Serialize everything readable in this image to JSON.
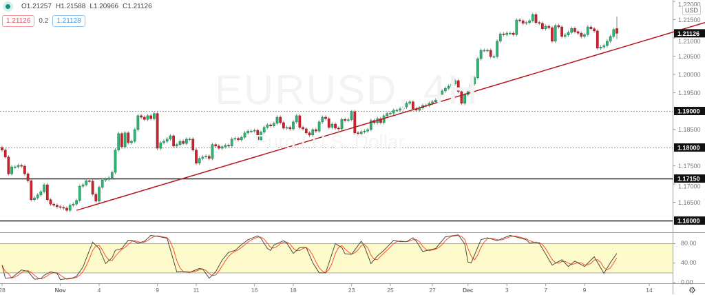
{
  "header": {
    "ohlc": {
      "open": "O1.21257",
      "high": "H1.21588",
      "low": "L1.20966",
      "close": "C1.21126"
    },
    "sell_price": "1.21126",
    "spread": "0.2",
    "buy_price": "1.21128",
    "status_dot_color": "#1c8c7c"
  },
  "watermark": {
    "symbol": "EURUSD, 4H",
    "description": "Euro / U.S. Dollar"
  },
  "currency_badge": "USD",
  "settings_icon": "gear-icon",
  "colors": {
    "up": "#2bb673",
    "down": "#d0222e",
    "trendline": "#b3171c",
    "stoch_k": "#4a4a3a",
    "stoch_d": "#ff4d2e",
    "stoch_band": "#fdfbcb"
  },
  "chart_data": [
    {
      "type": "candlestick",
      "title": "",
      "ylim": [
        1.1585,
        1.2225
      ],
      "grid": false,
      "last_candle": {
        "open": 1.21257,
        "high": 1.21588,
        "low": 1.20966,
        "close": 1.21126
      },
      "first_open": 1.18,
      "close": [
        1.1793,
        1.1774,
        1.1728,
        1.1747,
        1.1747,
        1.1751,
        1.1749,
        1.1728,
        1.1709,
        1.1657,
        1.1662,
        1.167,
        1.1679,
        1.1698,
        1.1657,
        1.1645,
        1.1642,
        1.1638,
        1.1636,
        1.1634,
        1.1628,
        1.1642,
        1.1645,
        1.1655,
        1.1694,
        1.1698,
        1.1709,
        1.1708,
        1.1672,
        1.1653,
        1.1691,
        1.1711,
        1.1713,
        1.1717,
        1.1732,
        1.1793,
        1.1838,
        1.1802,
        1.184,
        1.1813,
        1.1817,
        1.1849,
        1.1887,
        1.1883,
        1.1877,
        1.1887,
        1.1879,
        1.1893,
        1.1798,
        1.1813,
        1.1817,
        1.1823,
        1.1832,
        1.1804,
        1.1808,
        1.1817,
        1.1811,
        1.1823,
        1.1823,
        1.1793,
        1.1757,
        1.177,
        1.1774,
        1.1776,
        1.177,
        1.1808,
        1.1804,
        1.1798,
        1.1802,
        1.1806,
        1.1804,
        1.1823,
        1.1825,
        1.1821,
        1.1828,
        1.184,
        1.1845,
        1.1845,
        1.1847,
        1.1821,
        1.1842,
        1.1855,
        1.1862,
        1.1859,
        1.1866,
        1.1883,
        1.1868,
        1.1853,
        1.1855,
        1.1851,
        1.187,
        1.1887,
        1.1855,
        1.1851,
        1.184,
        1.1834,
        1.1849,
        1.1845,
        1.187,
        1.1883,
        1.1879,
        1.1855,
        1.1864,
        1.1853,
        1.1851,
        1.1877,
        1.1874,
        1.1876,
        1.1898,
        1.184,
        1.1838,
        1.1843,
        1.1845,
        1.1849,
        1.1874,
        1.1868,
        1.1879,
        1.1868,
        1.1887,
        1.1893,
        1.1894,
        1.1902,
        1.1902,
        1.1906,
        1.1911,
        1.1921,
        1.1925,
        1.1906,
        1.1902,
        1.1908,
        1.1915,
        1.1915,
        1.1921,
        1.1925,
        1.193,
        1.1945,
        1.1955,
        1.1962,
        1.1968,
        1.1974,
        1.1983,
        1.1953,
        1.1921,
        1.1945,
        1.1953,
        1.1974,
        1.1991,
        1.2043,
        1.2066,
        1.2066,
        1.2066,
        1.2049,
        1.2049,
        1.2091,
        1.2111,
        1.2109,
        1.2113,
        1.2113,
        1.2109,
        1.2149,
        1.2147,
        1.214,
        1.2142,
        1.2147,
        1.2164,
        1.2142,
        1.214,
        1.2125,
        1.2132,
        1.2128,
        1.2091,
        1.2134,
        1.213,
        1.2104,
        1.2108,
        1.2115,
        1.2126,
        1.2117,
        1.2113,
        1.2104,
        1.2109,
        1.213,
        1.2125,
        1.2119,
        1.2072,
        1.2075,
        1.2079,
        1.2091,
        1.2104,
        1.2123,
        1.2113
      ],
      "x_ticks": [
        {
          "label": "28",
          "bar": 0
        },
        {
          "label": "Nov",
          "bar": 18
        },
        {
          "label": "4",
          "bar": 30
        },
        {
          "label": "9",
          "bar": 48
        },
        {
          "label": "11",
          "bar": 60
        },
        {
          "label": "16",
          "bar": 78
        },
        {
          "label": "18",
          "bar": 90
        },
        {
          "label": "23",
          "bar": 108
        },
        {
          "label": "25",
          "bar": 120
        },
        {
          "label": "27",
          "bar": 133
        },
        {
          "label": "Dec",
          "bar": 144
        },
        {
          "label": "3",
          "bar": 156
        },
        {
          "label": "7",
          "bar": 168
        },
        {
          "label": "9",
          "bar": 180
        },
        {
          "label": "14",
          "bar": 200
        }
      ],
      "y_ticks": [
        "1.22000",
        "1.21500",
        "1.21000",
        "1.20500",
        "1.20000",
        "1.19500",
        "1.18500",
        "1.17500",
        "1.17000",
        "1.16500"
      ],
      "price_labels": [
        {
          "label": "1.21126",
          "value": 1.21126,
          "kind": "last"
        },
        {
          "label": "1.19000",
          "value": 1.19,
          "kind": "dotted"
        },
        {
          "label": "1.18000",
          "value": 1.18,
          "kind": "dotted"
        },
        {
          "label": "1.17150",
          "value": 1.1715,
          "kind": "solid"
        },
        {
          "label": "1.16000",
          "value": 1.16,
          "kind": "solid"
        }
      ],
      "trendline": [
        {
          "bar": 23,
          "price": 1.1628
        },
        {
          "bar": 207,
          "price": 1.2115
        }
      ]
    },
    {
      "type": "line",
      "title": "",
      "ylim": [
        0,
        100
      ],
      "band": [
        20,
        80
      ],
      "y_ticks": [
        "80.00",
        "40.00",
        "0.00"
      ],
      "k": [
        [
          0,
          36
        ],
        [
          1,
          9
        ],
        [
          3,
          10
        ],
        [
          6,
          26
        ],
        [
          8,
          23
        ],
        [
          10,
          7
        ],
        [
          12,
          8
        ],
        [
          13,
          15
        ],
        [
          15,
          22
        ],
        [
          17,
          19
        ],
        [
          18,
          6
        ],
        [
          22,
          10
        ],
        [
          23,
          13
        ],
        [
          25,
          32
        ],
        [
          28,
          83
        ],
        [
          30,
          70
        ],
        [
          32,
          39
        ],
        [
          34,
          51
        ],
        [
          35,
          66
        ],
        [
          37,
          70
        ],
        [
          39,
          87
        ],
        [
          40,
          87
        ],
        [
          42,
          81
        ],
        [
          44,
          85
        ],
        [
          46,
          97
        ],
        [
          48,
          95
        ],
        [
          51,
          91
        ],
        [
          54,
          22
        ],
        [
          55,
          23
        ],
        [
          58,
          21
        ],
        [
          61,
          29
        ],
        [
          62,
          28
        ],
        [
          64,
          9
        ],
        [
          66,
          22
        ],
        [
          68,
          46
        ],
        [
          70,
          62
        ],
        [
          72,
          66
        ],
        [
          74,
          78
        ],
        [
          76,
          88
        ],
        [
          79,
          96
        ],
        [
          80,
          91
        ],
        [
          82,
          70
        ],
        [
          83,
          66
        ],
        [
          84,
          77
        ],
        [
          87,
          86
        ],
        [
          88,
          81
        ],
        [
          90,
          60
        ],
        [
          92,
          72
        ],
        [
          94,
          72
        ],
        [
          96,
          41
        ],
        [
          98,
          20
        ],
        [
          100,
          20
        ],
        [
          103,
          80
        ],
        [
          105,
          72
        ],
        [
          106,
          59
        ],
        [
          108,
          58
        ],
        [
          111,
          85
        ],
        [
          112,
          74
        ],
        [
          114,
          39
        ],
        [
          116,
          55
        ],
        [
          118,
          66
        ],
        [
          121,
          87
        ],
        [
          123,
          84
        ],
        [
          125,
          84
        ],
        [
          127,
          92
        ],
        [
          128,
          85
        ],
        [
          130,
          64
        ],
        [
          134,
          70
        ],
        [
          137,
          94
        ],
        [
          141,
          98
        ],
        [
          143,
          79
        ],
        [
          144,
          42
        ],
        [
          145,
          41
        ],
        [
          148,
          88
        ],
        [
          150,
          92
        ],
        [
          153,
          86
        ],
        [
          157,
          97
        ],
        [
          162,
          88
        ],
        [
          163,
          81
        ],
        [
          165,
          83
        ],
        [
          166,
          81
        ],
        [
          170,
          36
        ],
        [
          173,
          47
        ],
        [
          175,
          33
        ],
        [
          177,
          44
        ],
        [
          180,
          33
        ],
        [
          183,
          53
        ],
        [
          186,
          19
        ],
        [
          188,
          41
        ],
        [
          190,
          60
        ]
      ]
    }
  ]
}
